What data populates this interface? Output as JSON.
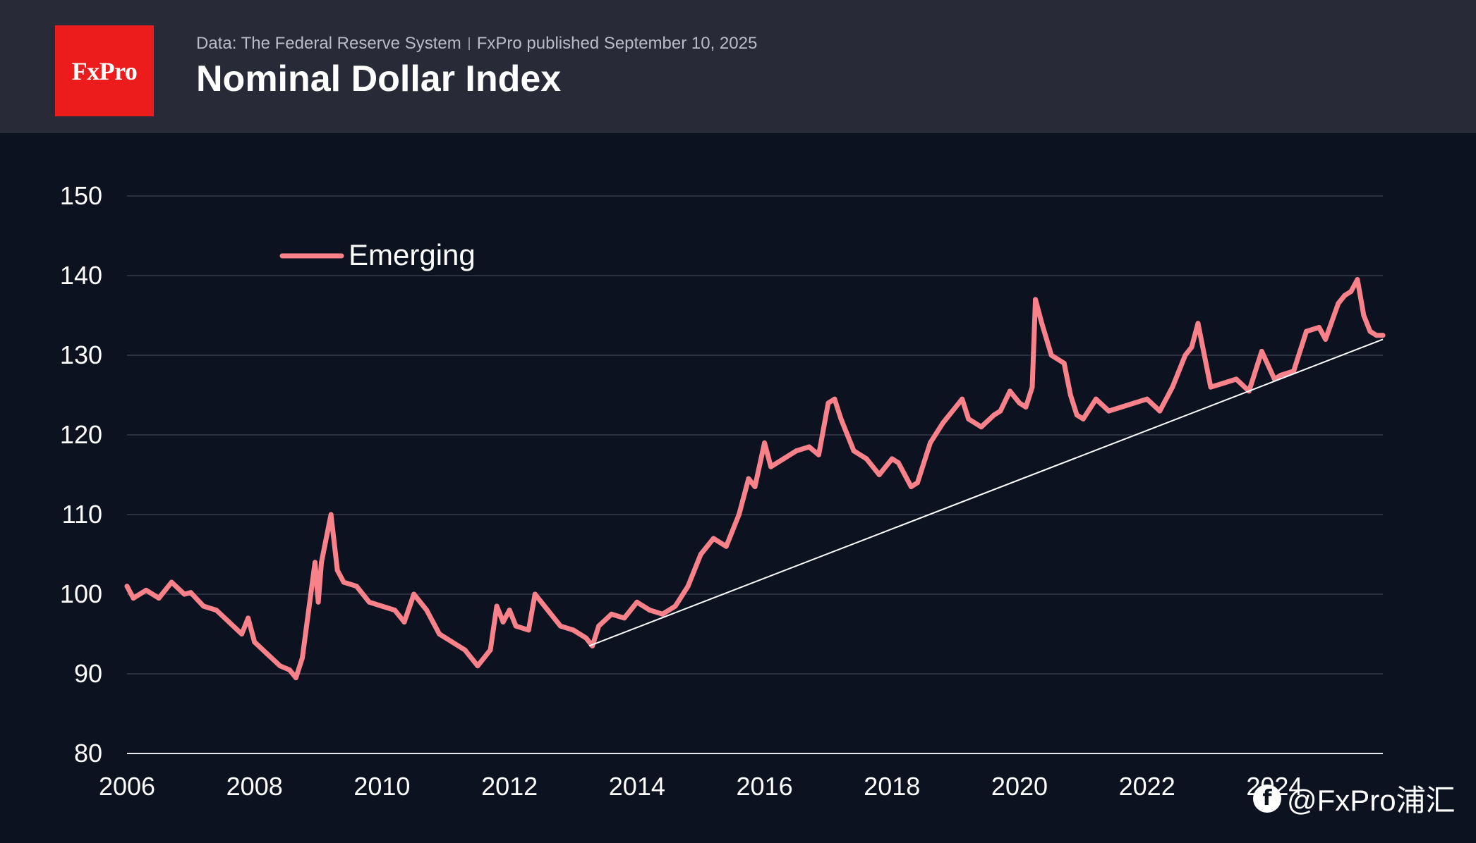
{
  "header": {
    "logo_text": "FxPro",
    "source": "Data: The Federal Reserve System",
    "published": "FxPro published September 10, 2025",
    "title": "Nominal Dollar Index"
  },
  "watermark": {
    "icon": "social-app-icon",
    "text": "@FxPro浦汇"
  },
  "colors": {
    "header_bg": "#282b37",
    "plot_bg": "#0d1220",
    "logo_bg": "#ed1c1c",
    "series": "#f8818a",
    "trendline": "#ffffff",
    "grid": "#2b3040"
  },
  "chart_data": {
    "type": "line",
    "title": "Nominal Dollar Index",
    "xlabel": "",
    "ylabel": "",
    "xlim": [
      2006,
      2025.7
    ],
    "ylim": [
      80,
      150
    ],
    "x_ticks": [
      "2006",
      "2008",
      "2010",
      "2012",
      "2014",
      "2016",
      "2018",
      "2020",
      "2022",
      "2024"
    ],
    "y_ticks": [
      "80",
      "90",
      "100",
      "110",
      "120",
      "130",
      "140",
      "150"
    ],
    "grid": true,
    "legend": "top-left",
    "series": [
      {
        "name": "Emerging",
        "x": [
          2006.0,
          2006.1,
          2006.3,
          2006.5,
          2006.7,
          2006.9,
          2007.0,
          2007.2,
          2007.4,
          2007.6,
          2007.8,
          2007.9,
          2008.0,
          2008.2,
          2008.4,
          2008.55,
          2008.65,
          2008.75,
          2008.85,
          2008.95,
          2009.0,
          2009.05,
          2009.1,
          2009.2,
          2009.3,
          2009.4,
          2009.6,
          2009.8,
          2010.0,
          2010.2,
          2010.35,
          2010.5,
          2010.7,
          2010.9,
          2011.1,
          2011.3,
          2011.5,
          2011.6,
          2011.7,
          2011.8,
          2011.9,
          2012.0,
          2012.1,
          2012.3,
          2012.4,
          2012.6,
          2012.8,
          2013.0,
          2013.2,
          2013.3,
          2013.4,
          2013.6,
          2013.8,
          2014.0,
          2014.2,
          2014.4,
          2014.6,
          2014.8,
          2015.0,
          2015.2,
          2015.4,
          2015.6,
          2015.75,
          2015.85,
          2016.0,
          2016.1,
          2016.3,
          2016.5,
          2016.7,
          2016.85,
          2017.0,
          2017.1,
          2017.2,
          2017.4,
          2017.6,
          2017.8,
          2018.0,
          2018.1,
          2018.3,
          2018.4,
          2018.6,
          2018.8,
          2018.95,
          2019.1,
          2019.2,
          2019.4,
          2019.6,
          2019.7,
          2019.85,
          2020.0,
          2020.1,
          2020.2,
          2020.25,
          2020.35,
          2020.5,
          2020.7,
          2020.8,
          2020.9,
          2021.0,
          2021.2,
          2021.4,
          2021.6,
          2021.8,
          2022.0,
          2022.2,
          2022.4,
          2022.6,
          2022.7,
          2022.8,
          2022.9,
          2023.0,
          2023.2,
          2023.4,
          2023.6,
          2023.8,
          2024.0,
          2024.1,
          2024.3,
          2024.5,
          2024.7,
          2024.8,
          2025.0,
          2025.1,
          2025.2,
          2025.3,
          2025.4,
          2025.5,
          2025.6,
          2025.7
        ],
        "y": [
          101,
          99.5,
          100.5,
          99.5,
          101.5,
          100.0,
          100.2,
          98.5,
          98.0,
          96.5,
          95.0,
          97.0,
          94.0,
          92.5,
          91.0,
          90.5,
          89.5,
          92.0,
          98.0,
          104.0,
          99.0,
          104.0,
          106.0,
          110.0,
          103.0,
          101.5,
          101.0,
          99.0,
          98.5,
          98.0,
          96.5,
          100.0,
          98.0,
          95.0,
          94.0,
          93.0,
          91.0,
          92.0,
          93.0,
          98.5,
          96.5,
          98.0,
          96.0,
          95.5,
          100.0,
          98.0,
          96.0,
          95.5,
          94.5,
          93.5,
          96.0,
          97.5,
          97.0,
          99.0,
          98.0,
          97.5,
          98.5,
          101.0,
          105.0,
          107.0,
          106.0,
          110.0,
          114.5,
          113.5,
          119.0,
          116.0,
          117.0,
          118.0,
          118.5,
          117.5,
          124.0,
          124.5,
          122.0,
          118.0,
          117.0,
          115.0,
          117.0,
          116.5,
          113.5,
          114.0,
          119.0,
          121.5,
          123.0,
          124.5,
          122.0,
          121.0,
          122.5,
          123.0,
          125.5,
          124.0,
          123.5,
          126.0,
          137.0,
          134.0,
          130.0,
          129.0,
          125.0,
          122.5,
          122.0,
          124.5,
          123.0,
          123.5,
          124.0,
          124.5,
          123.0,
          126.0,
          130.0,
          131.0,
          134.0,
          130.0,
          126.0,
          126.5,
          127.0,
          125.5,
          130.5,
          127.0,
          127.5,
          128.0,
          133.0,
          133.5,
          132.0,
          136.5,
          137.5,
          138.0,
          139.5,
          135.0,
          133.0,
          132.5,
          132.5
        ]
      }
    ],
    "trendline": {
      "x": [
        2013.25,
        2025.7
      ],
      "y": [
        93.5,
        132.0
      ]
    }
  }
}
